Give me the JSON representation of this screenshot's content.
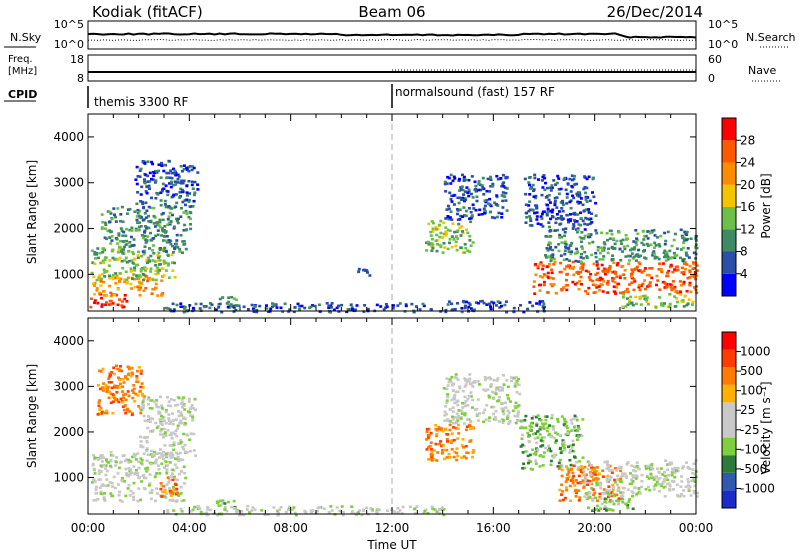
{
  "header": {
    "radar": "Kodiak (fitACF)",
    "beam": "Beam 06",
    "date": "26/Dec/2014"
  },
  "strip_labels": {
    "nsky": "N.Sky",
    "nsearch": "N.Search",
    "freq_line1": "Freq.",
    "freq_line2": "[MHz]",
    "nave": "Nave",
    "cpid": "CPID",
    "noise_ticks_left": [
      "10^5",
      "10^0"
    ],
    "noise_ticks_right": [
      "10^5",
      "10^0"
    ],
    "freq_ticks_left": [
      "18",
      "8"
    ],
    "nave_ticks_right": [
      "60",
      "0"
    ]
  },
  "cpid_segments": [
    {
      "label": "themis 3300 RF",
      "start_hour": 0
    },
    {
      "label": "normalsound (fast) 157 RF",
      "start_hour": 12
    }
  ],
  "colors": {
    "power_scale": [
      "#0000ff",
      "#2a4fa8",
      "#3e8a62",
      "#6cc04a",
      "#f5c400",
      "#ff8c00",
      "#ff5a00",
      "#ff0000"
    ],
    "velocity_scale": [
      "#1a2cc8",
      "#2f5ab0",
      "#2e7a3a",
      "#7fcf3a",
      "#c8c8c8",
      "#c8c8c8",
      "#ffb000",
      "#ff7a00",
      "#ff3c00",
      "#ff0000"
    ],
    "grey": "#c8c8c8"
  },
  "chart_data": [
    {
      "type": "heatmap",
      "name": "power",
      "xlabel": "",
      "ylabel": "Slant Range [km]",
      "xlim": [
        0,
        24
      ],
      "ylim": [
        200,
        4500
      ],
      "y_ticks": [
        "1000",
        "2000",
        "3000",
        "4000"
      ],
      "colorbar_label": "Power [dB]",
      "colorbar_ticks": [
        "4",
        "8",
        "12",
        "16",
        "20",
        "24",
        "28"
      ],
      "regions": [
        {
          "x": [
            0.0,
            1.5
          ],
          "y": [
            300,
            600
          ],
          "level": 7
        },
        {
          "x": [
            0.1,
            2.9
          ],
          "y": [
            550,
            1000
          ],
          "level": 5
        },
        {
          "x": [
            0.1,
            3.4
          ],
          "y": [
            900,
            1600
          ],
          "level": 3
        },
        {
          "x": [
            0.5,
            4.0
          ],
          "y": [
            1500,
            2500
          ],
          "level": 2
        },
        {
          "x": [
            1.8,
            4.3
          ],
          "y": [
            2500,
            3500
          ],
          "level": 1
        },
        {
          "x": [
            5.0,
            5.8
          ],
          "y": [
            300,
            550
          ],
          "level": 2
        },
        {
          "x": [
            3.0,
            14.0
          ],
          "y": [
            200,
            400
          ],
          "level": 1
        },
        {
          "x": [
            10.4,
            11.2
          ],
          "y": [
            1000,
            1150
          ],
          "level": 1
        },
        {
          "x": [
            13.3,
            15.2
          ],
          "y": [
            1500,
            2200
          ],
          "level": 3
        },
        {
          "x": [
            14.0,
            16.5
          ],
          "y": [
            2200,
            3200
          ],
          "level": 1
        },
        {
          "x": [
            14.0,
            18.0
          ],
          "y": [
            200,
            450
          ],
          "level": 1
        },
        {
          "x": [
            17.2,
            20.0
          ],
          "y": [
            2000,
            3200
          ],
          "level": 1
        },
        {
          "x": [
            17.5,
            24.0
          ],
          "y": [
            600,
            1300
          ],
          "level": 6
        },
        {
          "x": [
            18.0,
            24.0
          ],
          "y": [
            1300,
            2000
          ],
          "level": 2
        },
        {
          "x": [
            21.0,
            24.0
          ],
          "y": [
            300,
            600
          ],
          "level": 3
        }
      ]
    },
    {
      "type": "heatmap",
      "name": "velocity",
      "xlabel": "Time UT",
      "ylabel": "Slant Range [km]",
      "xlim": [
        0,
        24
      ],
      "ylim": [
        200,
        4500
      ],
      "x_ticks": [
        "00:00",
        "04:00",
        "08:00",
        "12:00",
        "16:00",
        "20:00",
        "00:00"
      ],
      "y_ticks": [
        "1000",
        "2000",
        "3000",
        "4000"
      ],
      "colorbar_label": "Velocity [m s⁻¹]",
      "colorbar_ticks": [
        "1000",
        "500",
        "100",
        "25",
        "-25",
        "-100",
        "-500",
        "-1000"
      ],
      "regions": [
        {
          "x": [
            0.1,
            3.8
          ],
          "y": [
            500,
            1600
          ],
          "level": 4
        },
        {
          "x": [
            2.8,
            3.5
          ],
          "y": [
            600,
            1100
          ],
          "level": 7
        },
        {
          "x": [
            0.3,
            2.2
          ],
          "y": [
            2400,
            3500
          ],
          "level": 7
        },
        {
          "x": [
            2.0,
            4.2
          ],
          "y": [
            1500,
            2800
          ],
          "level": 4
        },
        {
          "x": [
            5.0,
            5.8
          ],
          "y": [
            300,
            550
          ],
          "level": 3
        },
        {
          "x": [
            3.0,
            14.0
          ],
          "y": [
            200,
            400
          ],
          "level": 4
        },
        {
          "x": [
            13.3,
            15.2
          ],
          "y": [
            1400,
            2200
          ],
          "level": 7
        },
        {
          "x": [
            14.0,
            17.0
          ],
          "y": [
            2200,
            3300
          ],
          "level": 4
        },
        {
          "x": [
            17.0,
            19.5
          ],
          "y": [
            1200,
            2400
          ],
          "level": 3
        },
        {
          "x": [
            18.5,
            21.0
          ],
          "y": [
            500,
            1300
          ],
          "level": 7
        },
        {
          "x": [
            19.5,
            24.0
          ],
          "y": [
            600,
            1400
          ],
          "level": 4
        },
        {
          "x": [
            19.5,
            21.5
          ],
          "y": [
            300,
            700
          ],
          "level": 3
        }
      ]
    }
  ]
}
